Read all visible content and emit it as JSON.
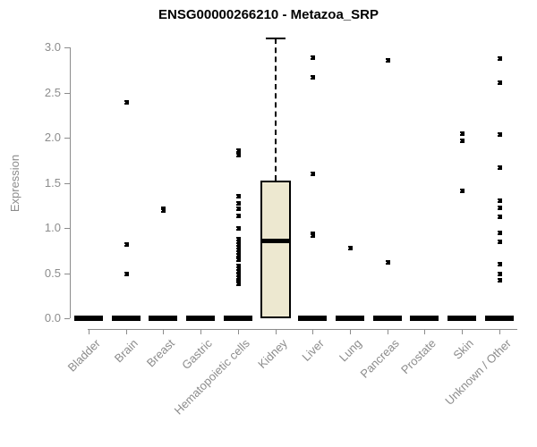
{
  "title": "ENSG00000266210 - Metazoa_SRP",
  "colors": {
    "background": "#ffffff",
    "title": "#000000",
    "axis": "#8c8c8c",
    "tick_label": "#8c8c8c",
    "box_fill": "#ede8d0",
    "box_border": "#000000",
    "point": "#000000"
  },
  "chart_data": {
    "type": "boxplot",
    "title": "ENSG00000266210 - Metazoa_SRP",
    "xlabel": "",
    "ylabel": "Expression",
    "ylim": [
      0.0,
      3.1
    ],
    "yticks": [
      "0.0",
      "0.5",
      "1.0",
      "1.5",
      "2.0",
      "2.5",
      "3.0"
    ],
    "grid": false,
    "legend": false,
    "categories": [
      "Bladder",
      "Brain",
      "Breast",
      "Gastric",
      "Hematopoietic cells",
      "Kidney",
      "Liver",
      "Lung",
      "Pancreas",
      "Prostate",
      "Skin",
      "Unknown / Other"
    ],
    "boxes": [
      {
        "category": "Bladder",
        "q1": 0,
        "median": 0,
        "q3": 0,
        "whisker_low": 0,
        "whisker_high": 0,
        "outliers": []
      },
      {
        "category": "Brain",
        "q1": 0,
        "median": 0,
        "q3": 0,
        "whisker_low": 0,
        "whisker_high": 0,
        "outliers": [
          2.4,
          0.82,
          0.5
        ]
      },
      {
        "category": "Breast",
        "q1": 0,
        "median": 0,
        "q3": 0,
        "whisker_low": 0,
        "whisker_high": 0,
        "outliers": [
          1.22,
          1.2
        ]
      },
      {
        "category": "Gastric",
        "q1": 0,
        "median": 0,
        "q3": 0,
        "whisker_low": 0,
        "whisker_high": 0,
        "outliers": []
      },
      {
        "category": "Hematopoietic cells",
        "q1": 0,
        "median": 0,
        "q3": 0,
        "whisker_low": 0,
        "whisker_high": 0,
        "outliers": [
          1.86,
          1.81,
          1.36,
          1.28,
          1.22,
          1.14,
          1.0,
          0.88,
          0.85,
          0.82,
          0.79,
          0.76,
          0.73,
          0.7,
          0.67,
          0.65,
          0.58,
          0.55,
          0.52,
          0.49,
          0.46,
          0.43,
          0.41,
          0.39
        ]
      },
      {
        "category": "Kidney",
        "q1": 0,
        "median": 0.86,
        "q3": 1.52,
        "whisker_low": 0,
        "whisker_high": 3.1,
        "outliers": []
      },
      {
        "category": "Liver",
        "q1": 0,
        "median": 0,
        "q3": 0,
        "whisker_low": 0,
        "whisker_high": 0,
        "outliers": [
          2.89,
          2.67,
          1.6,
          0.94,
          0.92
        ]
      },
      {
        "category": "Lung",
        "q1": 0,
        "median": 0,
        "q3": 0,
        "whisker_low": 0,
        "whisker_high": 0,
        "outliers": [
          0.78
        ]
      },
      {
        "category": "Pancreas",
        "q1": 0,
        "median": 0,
        "q3": 0,
        "whisker_low": 0,
        "whisker_high": 0,
        "outliers": [
          2.86,
          0.62
        ]
      },
      {
        "category": "Prostate",
        "q1": 0,
        "median": 0,
        "q3": 0,
        "whisker_low": 0,
        "whisker_high": 0,
        "outliers": []
      },
      {
        "category": "Skin",
        "q1": 0,
        "median": 0,
        "q3": 0,
        "whisker_low": 0,
        "whisker_high": 0,
        "outliers": [
          2.05,
          1.97,
          1.42
        ]
      },
      {
        "category": "Unknown / Other",
        "q1": 0,
        "median": 0,
        "q3": 0,
        "whisker_low": 0,
        "whisker_high": 0,
        "outliers": [
          2.88,
          2.61,
          2.04,
          1.67,
          1.31,
          1.23,
          1.13,
          0.95,
          0.85,
          0.6,
          0.5,
          0.43
        ]
      }
    ]
  }
}
